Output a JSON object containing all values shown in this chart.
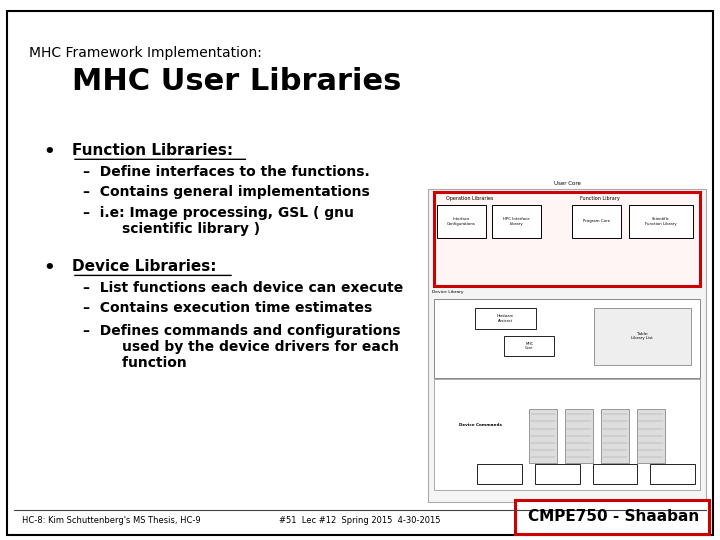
{
  "title_small": "MHC Framework Implementation:",
  "title_large": "MHC User Libraries",
  "bg_color": "#ffffff",
  "border_color": "#000000",
  "bullet1_header": "Function Libraries:",
  "bullet1_items": [
    "Define interfaces to the functions.",
    "Contains general implementations",
    "i.e: Image processing, GSL ( gnu\n        scientific library )"
  ],
  "bullet2_header": "Device Libraries:",
  "bullet2_items": [
    "List functions each device can execute",
    "Contains execution time estimates",
    "Defines commands and configurations\n        used by the device drivers for each\n        function"
  ],
  "footer_left": "HC-8: Kim Schuttenberg's MS Thesis, HC-9",
  "footer_center": "#51  Lec #12  Spring 2015  4-30-2015",
  "footer_right": "CMPE750 - Shaaban",
  "text_color": "#000000",
  "red_box_color": "#cc0000",
  "diagram_area": [
    0.595,
    0.07,
    0.385,
    0.58
  ]
}
